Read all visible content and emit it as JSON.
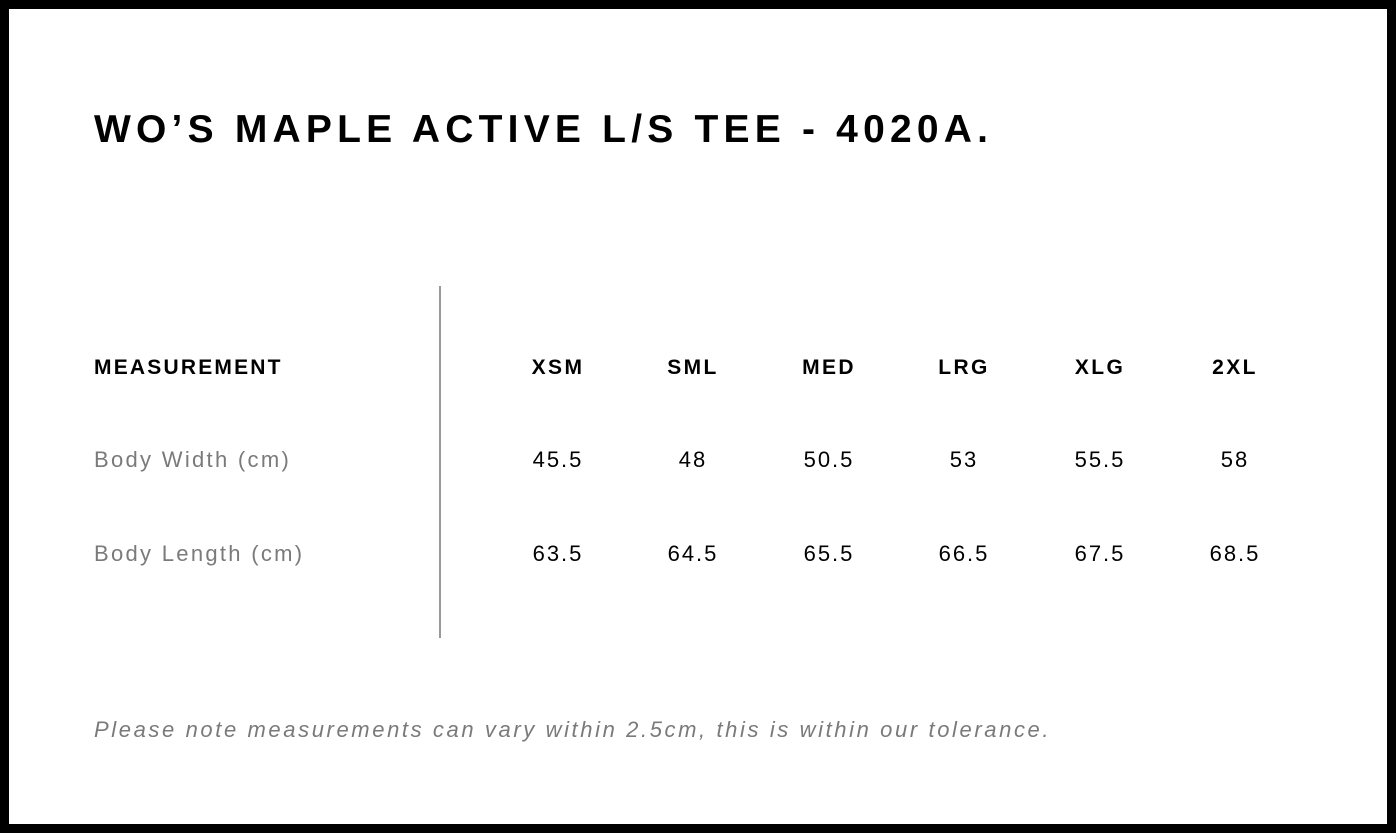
{
  "title": "WO’S MAPLE ACTIVE L/S TEE - 4020A.",
  "table": {
    "header_label": "MEASUREMENT",
    "sizes": [
      "XSM",
      "SML",
      "MED",
      "LRG",
      "XLG",
      "2XL"
    ],
    "rows": [
      {
        "label": "Body Width (cm)",
        "values": [
          "45.5",
          "48",
          "50.5",
          "53",
          "55.5",
          "58"
        ]
      },
      {
        "label": "Body Length (cm)",
        "values": [
          "63.5",
          "64.5",
          "65.5",
          "66.5",
          "67.5",
          "68.5"
        ]
      }
    ]
  },
  "note": "Please note measurements can vary within 2.5cm, this is within our tolerance.",
  "colors": {
    "border": "#000000",
    "label_grey": "#7a7a7a",
    "divider": "#999999"
  }
}
